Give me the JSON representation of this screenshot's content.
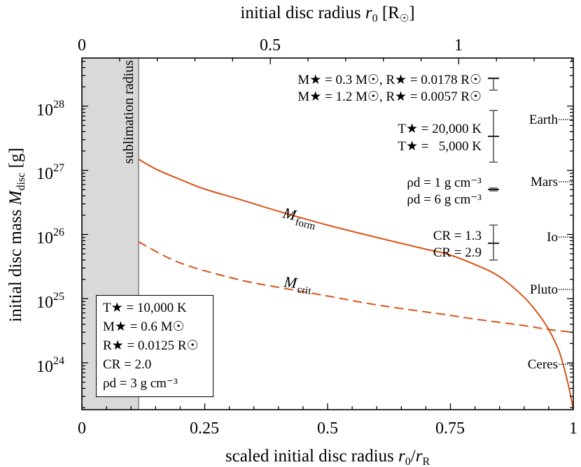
{
  "chart_data": {
    "type": "line",
    "title": "",
    "xlabel": "scaled initial disc radius r_0/r_R",
    "ylabel": "initial disc mass M_disc [g]",
    "top_xlabel": "initial disc radius r_0 [R_sun]",
    "xlim": [
      0,
      1
    ],
    "ylim_log10": [
      23.27,
      28.75
    ],
    "yscale": "log",
    "grid": false,
    "x_ticks": [
      "0",
      "0.25",
      "0.5",
      "0.75",
      "1"
    ],
    "x_tick_values": [
      0,
      0.25,
      0.5,
      0.75,
      1
    ],
    "top_x_ticks": [
      "0",
      "0.5",
      "1"
    ],
    "top_x_tick_values_scaled": [
      0,
      0.385,
      0.767
    ],
    "y_ticks": [
      "10^24",
      "10^25",
      "10^26",
      "10^27",
      "10^28"
    ],
    "y_tick_values_log10": [
      24,
      25,
      26,
      27,
      28
    ],
    "shaded_region": {
      "label": "sublimation radius",
      "x_start": 0,
      "x_end": 0.115,
      "color": "#d9d9d9"
    },
    "series": [
      {
        "name": "M_form",
        "style": "solid",
        "color": "#d95319",
        "x": [
          0.115,
          0.15,
          0.2,
          0.25,
          0.317,
          0.4,
          0.5,
          0.6,
          0.7,
          0.742,
          0.8,
          0.85,
          0.9,
          0.93,
          0.95,
          0.97,
          0.98,
          0.99,
          1.0
        ],
        "y": [
          1.5e+27,
          1.05e+27,
          7.2e+26,
          5.1e+26,
          3.6e+26,
          2.3e+26,
          1.4e+26,
          9e+25,
          5.9e+25,
          5e+25,
          3.4e+25,
          2.2e+25,
          1.05e+25,
          5.6e+24,
          3.3e+24,
          1.6e+24,
          9e+23,
          4.5e+23,
          1.9e+23
        ]
      },
      {
        "name": "M_crit",
        "style": "dashed",
        "color": "#d95319",
        "x": [
          0.115,
          0.2,
          0.317,
          0.4,
          0.5,
          0.6,
          0.742,
          0.8,
          0.9,
          0.95,
          1.0
        ],
        "y": [
          7.7e+25,
          3.6e+25,
          2e+25,
          1.5e+25,
          1.1e+25,
          8e+24,
          5.6e+24,
          4.8e+24,
          3.8e+24,
          3.3e+24,
          3e+24
        ]
      }
    ],
    "curve_labels": [
      {
        "text": "M_form",
        "x": 0.415,
        "y": 2e+26
      },
      {
        "text": "M_crit",
        "x": 0.415,
        "y": 1.9e+25
      }
    ],
    "reference_masses": [
      {
        "name": "Earth",
        "value": 5.97e+27
      },
      {
        "name": "Mars",
        "value": 6.42e+26
      },
      {
        "name": "Io",
        "value": 8.93e+25
      },
      {
        "name": "Pluto",
        "value": 1.3e+25
      },
      {
        "name": "Ceres",
        "value": 9.4e+23
      }
    ],
    "sensitivity_bars": [
      {
        "label_high": "M* = 0.3 M_sun, R* = 0.0178 R_sun",
        "label_low": "M* = 1.2 M_sun, R* = 0.0057 R_sun",
        "center_factor": 1.0,
        "upper_factor": 1.0,
        "lower_factor": 0.66
      },
      {
        "label_high": "T* = 20,000 K",
        "label_low": "T* = 5,000 K",
        "center_factor": 1.0,
        "upper_factor": 2.5,
        "lower_factor": 0.4
      },
      {
        "label_high": "rho_d = 1 g cm^-3",
        "label_low": "rho_d = 6 g cm^-3",
        "center_factor": 1.0,
        "upper_factor": 1.05,
        "lower_factor": 0.95
      },
      {
        "label_high": "C_R = 1.3",
        "label_low": "C_R = 2.9",
        "center_factor": 1.0,
        "upper_factor": 1.9,
        "lower_factor": 0.53
      }
    ],
    "parameters_box": [
      "T* = 10,000 K",
      "M* = 0.6 M_sun",
      "R* = 0.0125 R_sun",
      "C_R = 2.0",
      "rho_d = 3 g cm^-3"
    ]
  },
  "labels": {
    "top_axis_title": "initial disc radius",
    "top_axis_var": "r",
    "top_axis_sub": "0",
    "top_axis_unit": "[R",
    "bottom_axis_title": "scaled initial disc radius",
    "left_axis_title": "initial disc mass",
    "left_axis_unit": "[g]",
    "sublimation": "sublimation radius",
    "m_form_main": "M",
    "m_form_sub": "form",
    "m_crit_main": "M",
    "m_crit_sub": "crit",
    "bottom_ticks": [
      "0",
      "0.25",
      "0.5",
      "0.75",
      "1"
    ],
    "top_ticks": [
      "0",
      "0.5",
      "1"
    ],
    "y_tick_base": "10",
    "y_tick_exps": [
      "28",
      "27",
      "26",
      "25",
      "24"
    ],
    "planets": [
      "Earth",
      "Mars",
      "Io",
      "Pluto",
      "Ceres"
    ],
    "bar1_a": "M★ = 0.3 M☉, R★ = 0.0178 R☉",
    "bar1_b": "M★ = 1.2 M☉, R★ = 0.0057 R☉",
    "bar2_a": "T★ = 20,000 K",
    "bar2_b": "T★ =   5,000 K",
    "bar3_a": "ρd = 1 g cm⁻³",
    "bar3_b": "ρd = 6 g cm⁻³",
    "bar4_a": "CR = 1.3",
    "bar4_b": "CR = 2.9",
    "box": [
      "T★ = 10,000 K",
      "M★ = 0.6 M☉",
      "R★ = 0.0125 R☉",
      "CR = 2.0",
      "ρd = 3 g cm⁻³"
    ]
  },
  "colors": {
    "curve": "#d95319",
    "shade": "#d9d9d9",
    "errorbar": "#6e6e6e",
    "axis": "#000000"
  }
}
